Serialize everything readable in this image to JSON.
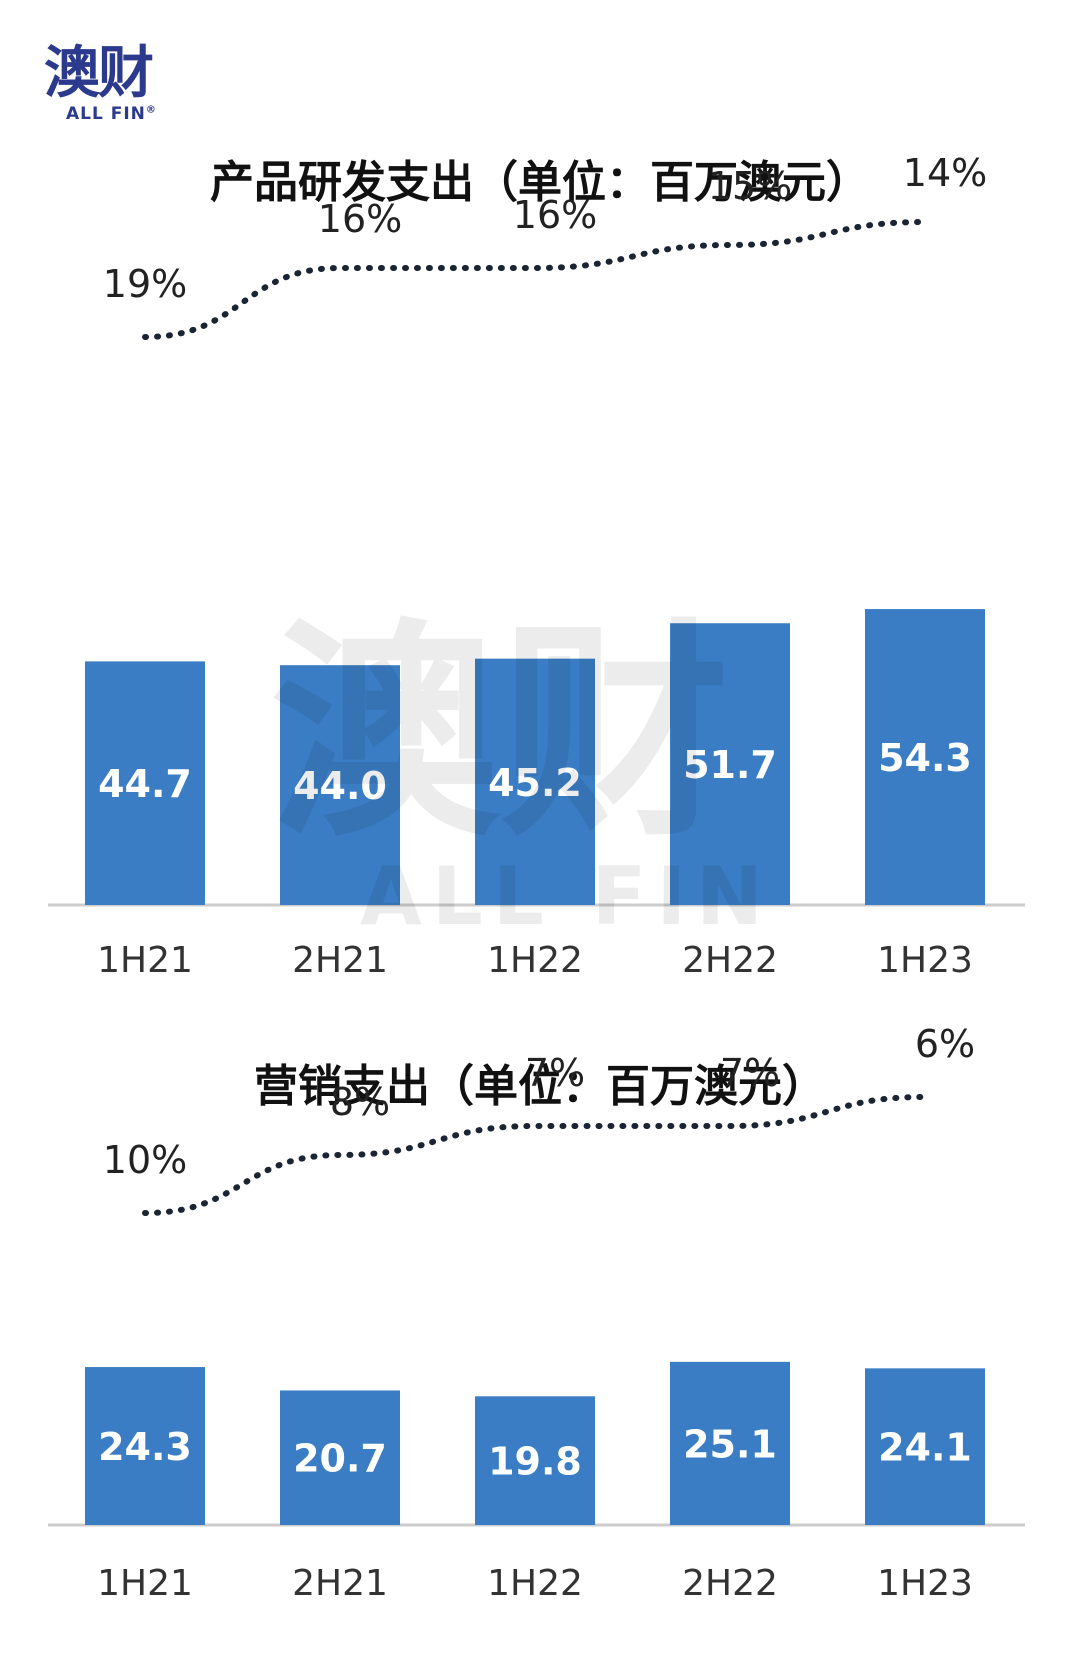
{
  "logo": {
    "cn": "澳财",
    "en": "ALL FIN",
    "reg": "®"
  },
  "watermark": {
    "cn": "澳财",
    "en": "ALL FIN"
  },
  "chart_data": [
    {
      "type": "bar",
      "title": "产品研发支出（单位：百万澳元）",
      "categories": [
        "1H21",
        "2H21",
        "1H22",
        "2H22",
        "1H23"
      ],
      "values": [
        44.7,
        44.0,
        45.2,
        51.7,
        54.3
      ],
      "value_labels": [
        "44.7",
        "44.0",
        "45.2",
        "51.7",
        "54.3"
      ],
      "overlay_line": {
        "style": "dotted",
        "values": [
          19,
          16,
          16,
          15,
          14
        ],
        "labels": [
          "19%",
          "16%",
          "16%",
          "15%",
          "14%"
        ]
      },
      "bar_color": "#3a7dc4",
      "grid": false
    },
    {
      "type": "bar",
      "title": "营销支出（单位：百万澳元）",
      "categories": [
        "1H21",
        "2H21",
        "1H22",
        "2H22",
        "1H23"
      ],
      "values": [
        24.3,
        20.7,
        19.8,
        25.1,
        24.1
      ],
      "value_labels": [
        "24.3",
        "20.7",
        "19.8",
        "25.1",
        "24.1"
      ],
      "overlay_line": {
        "style": "dotted",
        "values": [
          10,
          8,
          7,
          7,
          6
        ],
        "labels": [
          "10%",
          "8%",
          "7%",
          "7%",
          "6%"
        ]
      },
      "bar_color": "#3a7dc4",
      "grid": false
    }
  ]
}
